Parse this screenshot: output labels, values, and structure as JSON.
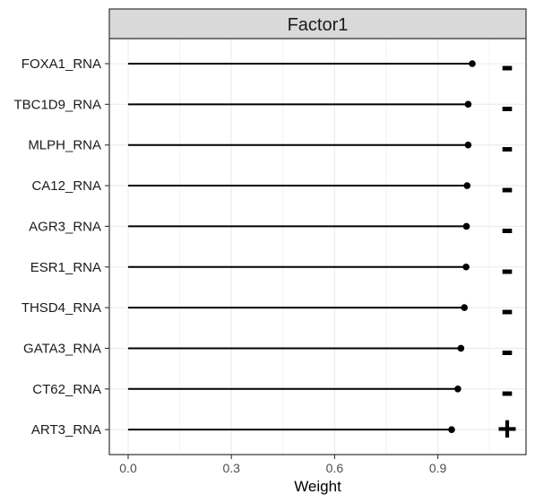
{
  "chart_data": {
    "type": "lollipop",
    "facet_title": "Factor1",
    "xlabel": "Weight",
    "xlim": [
      0,
      1.1
    ],
    "xticks": [
      0.0,
      0.3,
      0.6,
      0.9
    ],
    "xtick_labels": [
      "0.0",
      "0.3",
      "0.6",
      "0.9"
    ],
    "grid": true,
    "categories": [
      "FOXA1_RNA",
      "TBC1D9_RNA",
      "MLPH_RNA",
      "CA12_RNA",
      "AGR3_RNA",
      "ESR1_RNA",
      "THSD4_RNA",
      "GATA3_RNA",
      "CT62_RNA",
      "ART3_RNA"
    ],
    "values": [
      1.0,
      0.988,
      0.988,
      0.985,
      0.983,
      0.982,
      0.977,
      0.967,
      0.958,
      0.94
    ],
    "signs": [
      "-",
      "-",
      "-",
      "-",
      "-",
      "-",
      "-",
      "-",
      "-",
      "+"
    ]
  }
}
